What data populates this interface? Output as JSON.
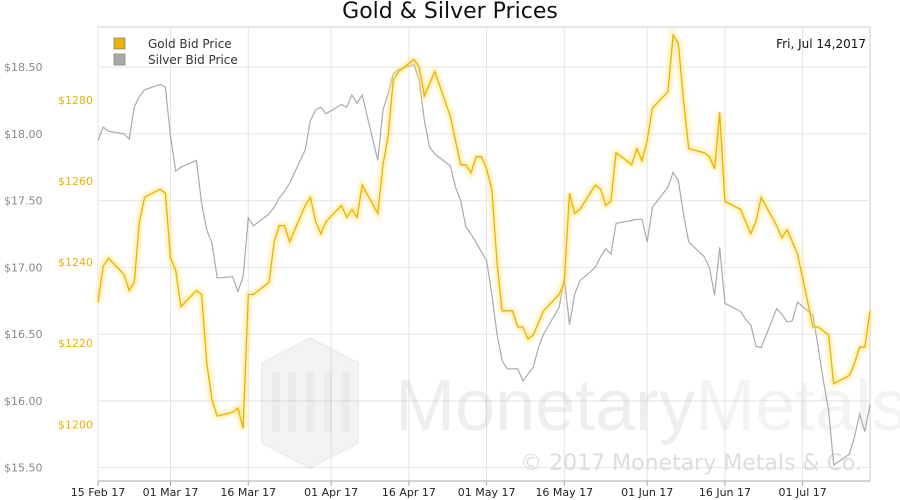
{
  "chart_data": {
    "type": "line",
    "title": "Gold & Silver Prices",
    "date_label": "Fri, Jul 14,2017",
    "legend_position": "top-left",
    "grid": true,
    "x_tick_labels": [
      "15 Feb 17",
      "01 Mar 17",
      "16 Mar 17",
      "01 Apr 17",
      "16 Apr 17",
      "01 May 17",
      "16 May 17",
      "01 Jun 17",
      "16 Jun 17",
      "01 Jul 17"
    ],
    "x_tick_dates": [
      "2017-02-15",
      "2017-03-01",
      "2017-03-16",
      "2017-04-01",
      "2017-04-16",
      "2017-05-01",
      "2017-05-16",
      "2017-06-01",
      "2017-06-16",
      "2017-07-01"
    ],
    "xlim": [
      "2017-02-15",
      "2017-07-14"
    ],
    "left_axis": {
      "series": "Silver Bid Price",
      "ylim": [
        15.4,
        18.8
      ],
      "ticks": [
        15.5,
        16.0,
        16.5,
        17.0,
        17.5,
        18.0,
        18.5
      ],
      "tick_labels": [
        "$15.50",
        "$16.00",
        "$16.50",
        "$17.00",
        "$17.50",
        "$18.00",
        "$18.50"
      ]
    },
    "right_axis": {
      "series": "Gold Bid Price",
      "ylim": [
        1186,
        1298
      ],
      "ticks": [
        1200,
        1220,
        1240,
        1260,
        1280
      ],
      "tick_labels": [
        "$1200",
        "$1220",
        "$1240",
        "$1260",
        "$1280"
      ]
    },
    "series": [
      {
        "name": "Gold Bid Price",
        "color": "#e8b400",
        "axis": "right",
        "points": [
          [
            "2017-02-15",
            1230
          ],
          [
            "2017-02-16",
            1239
          ],
          [
            "2017-02-17",
            1241
          ],
          [
            "2017-02-20",
            1237
          ],
          [
            "2017-02-21",
            1233
          ],
          [
            "2017-02-22",
            1235
          ],
          [
            "2017-02-23",
            1250
          ],
          [
            "2017-02-24",
            1256
          ],
          [
            "2017-02-27",
            1258
          ],
          [
            "2017-02-28",
            1257
          ],
          [
            "2017-03-01",
            1241
          ],
          [
            "2017-03-02",
            1238
          ],
          [
            "2017-03-03",
            1229
          ],
          [
            "2017-03-06",
            1233
          ],
          [
            "2017-03-07",
            1232
          ],
          [
            "2017-03-08",
            1215
          ],
          [
            "2017-03-09",
            1206
          ],
          [
            "2017-03-10",
            1202
          ],
          [
            "2017-03-13",
            1203
          ],
          [
            "2017-03-14",
            1204
          ],
          [
            "2017-03-15",
            1199
          ],
          [
            "2017-03-16",
            1232
          ],
          [
            "2017-03-17",
            1232
          ],
          [
            "2017-03-20",
            1235
          ],
          [
            "2017-03-21",
            1245
          ],
          [
            "2017-03-22",
            1249
          ],
          [
            "2017-03-23",
            1249
          ],
          [
            "2017-03-24",
            1245
          ],
          [
            "2017-03-27",
            1254
          ],
          [
            "2017-03-28",
            1256
          ],
          [
            "2017-03-29",
            1250
          ],
          [
            "2017-03-30",
            1247
          ],
          [
            "2017-03-31",
            1250
          ],
          [
            "2017-04-03",
            1254
          ],
          [
            "2017-04-04",
            1251
          ],
          [
            "2017-04-05",
            1253
          ],
          [
            "2017-04-06",
            1251
          ],
          [
            "2017-04-07",
            1259
          ],
          [
            "2017-04-10",
            1252
          ],
          [
            "2017-04-11",
            1264
          ],
          [
            "2017-04-12",
            1271
          ],
          [
            "2017-04-13",
            1285
          ],
          [
            "2017-04-14",
            1287
          ],
          [
            "2017-04-17",
            1290
          ],
          [
            "2017-04-18",
            1288
          ],
          [
            "2017-04-19",
            1281
          ],
          [
            "2017-04-20",
            1284
          ],
          [
            "2017-04-21",
            1287
          ],
          [
            "2017-04-24",
            1276
          ],
          [
            "2017-04-25",
            1270
          ],
          [
            "2017-04-26",
            1264
          ],
          [
            "2017-04-27",
            1264
          ],
          [
            "2017-04-28",
            1262
          ],
          [
            "2017-04-29",
            1266
          ],
          [
            "2017-04-30",
            1266
          ],
          [
            "2017-05-01",
            1263
          ],
          [
            "2017-05-02",
            1258
          ],
          [
            "2017-05-03",
            1240
          ],
          [
            "2017-05-04",
            1228
          ],
          [
            "2017-05-05",
            1228
          ],
          [
            "2017-05-06",
            1228
          ],
          [
            "2017-05-07",
            1224
          ],
          [
            "2017-05-08",
            1224
          ],
          [
            "2017-05-09",
            1221
          ],
          [
            "2017-05-10",
            1222
          ],
          [
            "2017-05-11",
            1225
          ],
          [
            "2017-05-12",
            1228
          ],
          [
            "2017-05-15",
            1232
          ],
          [
            "2017-05-16",
            1235
          ],
          [
            "2017-05-17",
            1257
          ],
          [
            "2017-05-18",
            1252
          ],
          [
            "2017-05-19",
            1253
          ],
          [
            "2017-05-22",
            1259
          ],
          [
            "2017-05-23",
            1258
          ],
          [
            "2017-05-24",
            1254
          ],
          [
            "2017-05-25",
            1255
          ],
          [
            "2017-05-26",
            1267
          ],
          [
            "2017-05-29",
            1264
          ],
          [
            "2017-05-30",
            1268
          ],
          [
            "2017-05-31",
            1265
          ],
          [
            "2017-06-01",
            1270
          ],
          [
            "2017-06-02",
            1278
          ],
          [
            "2017-06-05",
            1282
          ],
          [
            "2017-06-06",
            1296
          ],
          [
            "2017-06-07",
            1294
          ],
          [
            "2017-06-08",
            1280
          ],
          [
            "2017-06-09",
            1268
          ],
          [
            "2017-06-12",
            1267
          ],
          [
            "2017-06-13",
            1266
          ],
          [
            "2017-06-14",
            1263
          ],
          [
            "2017-06-15",
            1277
          ],
          [
            "2017-06-16",
            1255
          ],
          [
            "2017-06-19",
            1253
          ],
          [
            "2017-06-20",
            1250
          ],
          [
            "2017-06-21",
            1247
          ],
          [
            "2017-06-22",
            1250
          ],
          [
            "2017-06-23",
            1256
          ],
          [
            "2017-06-26",
            1249
          ],
          [
            "2017-06-27",
            1246
          ],
          [
            "2017-06-28",
            1248
          ],
          [
            "2017-06-29",
            1245
          ],
          [
            "2017-06-30",
            1242
          ],
          [
            "2017-07-03",
            1224
          ],
          [
            "2017-07-04",
            1224
          ],
          [
            "2017-07-05",
            1223
          ],
          [
            "2017-07-06",
            1222
          ],
          [
            "2017-07-07",
            1210
          ],
          [
            "2017-07-10",
            1212
          ],
          [
            "2017-07-11",
            1215
          ],
          [
            "2017-07-12",
            1219
          ],
          [
            "2017-07-13",
            1219
          ],
          [
            "2017-07-14",
            1228
          ]
        ]
      },
      {
        "name": "Silver Bid Price",
        "color": "#aaaaaa",
        "axis": "left",
        "points": [
          [
            "2017-02-15",
            17.95
          ],
          [
            "2017-02-16",
            18.05
          ],
          [
            "2017-02-17",
            18.02
          ],
          [
            "2017-02-20",
            18.0
          ],
          [
            "2017-02-21",
            17.96
          ],
          [
            "2017-02-22",
            18.2
          ],
          [
            "2017-02-23",
            18.28
          ],
          [
            "2017-02-24",
            18.33
          ],
          [
            "2017-02-27",
            18.37
          ],
          [
            "2017-02-28",
            18.35
          ],
          [
            "2017-03-01",
            17.98
          ],
          [
            "2017-03-02",
            17.72
          ],
          [
            "2017-03-03",
            17.75
          ],
          [
            "2017-03-06",
            17.8
          ],
          [
            "2017-03-07",
            17.48
          ],
          [
            "2017-03-08",
            17.28
          ],
          [
            "2017-03-09",
            17.18
          ],
          [
            "2017-03-10",
            16.92
          ],
          [
            "2017-03-13",
            16.93
          ],
          [
            "2017-03-14",
            16.82
          ],
          [
            "2017-03-15",
            16.93
          ],
          [
            "2017-03-16",
            17.37
          ],
          [
            "2017-03-17",
            17.31
          ],
          [
            "2017-03-20",
            17.4
          ],
          [
            "2017-03-21",
            17.45
          ],
          [
            "2017-03-22",
            17.52
          ],
          [
            "2017-03-23",
            17.57
          ],
          [
            "2017-03-24",
            17.63
          ],
          [
            "2017-03-27",
            17.88
          ],
          [
            "2017-03-28",
            18.1
          ],
          [
            "2017-03-29",
            18.18
          ],
          [
            "2017-03-30",
            18.2
          ],
          [
            "2017-03-31",
            18.15
          ],
          [
            "2017-04-03",
            18.22
          ],
          [
            "2017-04-04",
            18.2
          ],
          [
            "2017-04-05",
            18.29
          ],
          [
            "2017-04-06",
            18.23
          ],
          [
            "2017-04-07",
            18.29
          ],
          [
            "2017-04-10",
            17.8
          ],
          [
            "2017-04-11",
            18.18
          ],
          [
            "2017-04-12",
            18.3
          ],
          [
            "2017-04-13",
            18.45
          ],
          [
            "2017-04-14",
            18.48
          ],
          [
            "2017-04-17",
            18.52
          ],
          [
            "2017-04-18",
            18.4
          ],
          [
            "2017-04-19",
            18.1
          ],
          [
            "2017-04-20",
            17.9
          ],
          [
            "2017-04-21",
            17.85
          ],
          [
            "2017-04-24",
            17.76
          ],
          [
            "2017-04-25",
            17.6
          ],
          [
            "2017-04-26",
            17.5
          ],
          [
            "2017-04-27",
            17.3
          ],
          [
            "2017-04-28",
            17.25
          ],
          [
            "2017-05-01",
            17.05
          ],
          [
            "2017-05-02",
            16.8
          ],
          [
            "2017-05-03",
            16.5
          ],
          [
            "2017-05-04",
            16.3
          ],
          [
            "2017-05-05",
            16.24
          ],
          [
            "2017-05-06",
            16.24
          ],
          [
            "2017-05-07",
            16.24
          ],
          [
            "2017-05-08",
            16.15
          ],
          [
            "2017-05-09",
            16.2
          ],
          [
            "2017-05-10",
            16.25
          ],
          [
            "2017-05-11",
            16.4
          ],
          [
            "2017-05-12",
            16.5
          ],
          [
            "2017-05-15",
            16.7
          ],
          [
            "2017-05-16",
            16.92
          ],
          [
            "2017-05-17",
            16.57
          ],
          [
            "2017-05-18",
            16.8
          ],
          [
            "2017-05-19",
            16.9
          ],
          [
            "2017-05-22",
            17.0
          ],
          [
            "2017-05-23",
            17.08
          ],
          [
            "2017-05-24",
            17.14
          ],
          [
            "2017-05-25",
            17.1
          ],
          [
            "2017-05-26",
            17.33
          ],
          [
            "2017-05-29",
            17.35
          ],
          [
            "2017-05-30",
            17.36
          ],
          [
            "2017-05-31",
            17.36
          ],
          [
            "2017-06-01",
            17.19
          ],
          [
            "2017-06-02",
            17.45
          ],
          [
            "2017-06-05",
            17.6
          ],
          [
            "2017-06-06",
            17.71
          ],
          [
            "2017-06-07",
            17.65
          ],
          [
            "2017-06-08",
            17.4
          ],
          [
            "2017-06-09",
            17.19
          ],
          [
            "2017-06-12",
            17.08
          ],
          [
            "2017-06-13",
            17.0
          ],
          [
            "2017-06-14",
            16.79
          ],
          [
            "2017-06-15",
            17.15
          ],
          [
            "2017-06-16",
            16.73
          ],
          [
            "2017-06-19",
            16.67
          ],
          [
            "2017-06-20",
            16.61
          ],
          [
            "2017-06-21",
            16.57
          ],
          [
            "2017-06-22",
            16.41
          ],
          [
            "2017-06-23",
            16.4
          ],
          [
            "2017-06-26",
            16.69
          ],
          [
            "2017-06-27",
            16.65
          ],
          [
            "2017-06-28",
            16.59
          ],
          [
            "2017-06-29",
            16.6
          ],
          [
            "2017-06-30",
            16.74
          ],
          [
            "2017-07-03",
            16.64
          ],
          [
            "2017-07-04",
            16.4
          ],
          [
            "2017-07-05",
            16.15
          ],
          [
            "2017-07-06",
            15.93
          ],
          [
            "2017-07-07",
            15.52
          ],
          [
            "2017-07-10",
            15.6
          ],
          [
            "2017-07-11",
            15.73
          ],
          [
            "2017-07-12",
            15.9
          ],
          [
            "2017-07-13",
            15.77
          ],
          [
            "2017-07-14",
            15.97
          ]
        ]
      }
    ]
  },
  "watermark": {
    "brand_first": "Monetary",
    "brand_second": "Metals",
    "copyright": "© 2017 Monetary Metals & Co."
  }
}
